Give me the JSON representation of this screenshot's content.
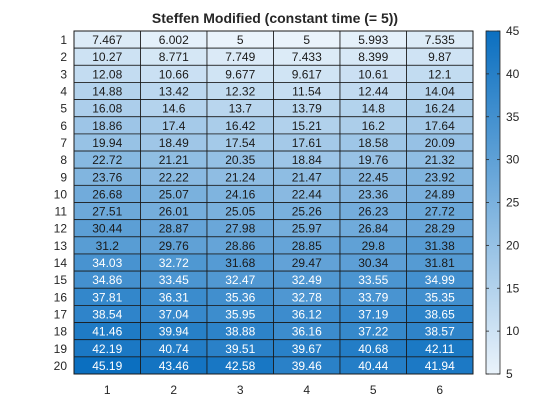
{
  "chart_data": {
    "type": "heatmap",
    "title": "Steffen Modified (constant time (= 5))",
    "xlabel": "",
    "ylabel": "",
    "x_categories": [
      "1",
      "2",
      "3",
      "4",
      "5",
      "6"
    ],
    "y_categories": [
      "1",
      "2",
      "3",
      "4",
      "5",
      "6",
      "7",
      "8",
      "9",
      "10",
      "11",
      "12",
      "13",
      "14",
      "15",
      "16",
      "17",
      "18",
      "19",
      "20"
    ],
    "values": [
      [
        7.467,
        6.002,
        5,
        5,
        5.993,
        7.535
      ],
      [
        10.27,
        8.771,
        7.749,
        7.433,
        8.399,
        9.87
      ],
      [
        12.08,
        10.66,
        9.677,
        9.617,
        10.61,
        12.1
      ],
      [
        14.88,
        13.42,
        12.32,
        11.54,
        12.44,
        14.04
      ],
      [
        16.08,
        14.6,
        13.7,
        13.79,
        14.8,
        16.24
      ],
      [
        18.86,
        17.4,
        16.42,
        15.21,
        16.2,
        17.64
      ],
      [
        19.94,
        18.49,
        17.54,
        17.61,
        18.58,
        20.09
      ],
      [
        22.72,
        21.21,
        20.35,
        18.84,
        19.76,
        21.32
      ],
      [
        23.76,
        22.22,
        21.24,
        21.47,
        22.45,
        23.92
      ],
      [
        26.68,
        25.07,
        24.16,
        22.44,
        23.36,
        24.89
      ],
      [
        27.51,
        26.01,
        25.05,
        25.26,
        26.23,
        27.72
      ],
      [
        30.44,
        28.87,
        27.98,
        25.97,
        26.84,
        28.29
      ],
      [
        31.2,
        29.76,
        28.86,
        28.85,
        29.8,
        31.38
      ],
      [
        34.03,
        32.72,
        31.68,
        29.47,
        30.34,
        31.81
      ],
      [
        34.86,
        33.45,
        32.47,
        32.49,
        33.55,
        34.99
      ],
      [
        37.81,
        36.31,
        35.36,
        32.78,
        33.79,
        35.35
      ],
      [
        38.54,
        37.04,
        35.95,
        36.12,
        37.19,
        38.65
      ],
      [
        41.46,
        39.94,
        38.88,
        36.16,
        37.22,
        38.57
      ],
      [
        42.19,
        40.74,
        39.51,
        39.67,
        40.68,
        42.11
      ],
      [
        45.19,
        43.46,
        42.58,
        39.46,
        40.44,
        41.94
      ]
    ],
    "colorbar": {
      "range": [
        5,
        45
      ],
      "ticks": [
        5,
        10,
        15,
        20,
        25,
        30,
        35,
        40,
        45
      ],
      "colors": {
        "low": "#eaf3fb",
        "high": "#0b6fc0"
      }
    }
  }
}
